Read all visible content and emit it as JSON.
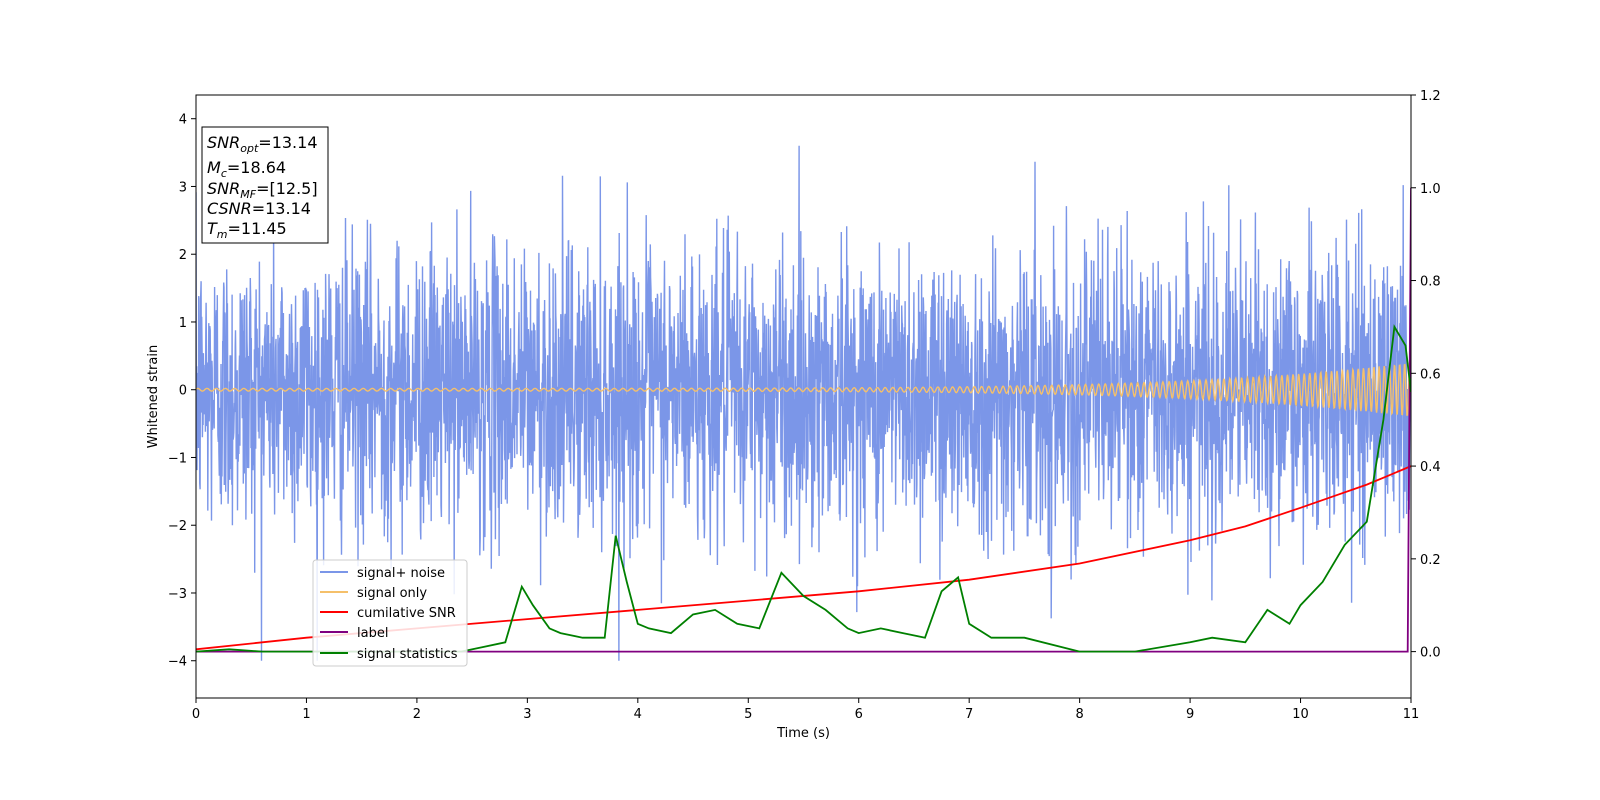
{
  "chart_data": {
    "type": "line",
    "xlabel": "Time (s)",
    "ylabel": "Whitened strain",
    "xlim": [
      0,
      11
    ],
    "ylim": [
      -4.55,
      4.35
    ],
    "y2lim": [
      -0.1,
      1.2
    ],
    "grid": false,
    "legend_placement": "lower-left",
    "x_ticks": [
      "0",
      "1",
      "2",
      "3",
      "4",
      "5",
      "6",
      "7",
      "8",
      "9",
      "10",
      "11"
    ],
    "y_ticks": [
      "−4",
      "−3",
      "−2",
      "−1",
      "0",
      "1",
      "2",
      "3",
      "4"
    ],
    "y2_ticks": [
      "0.0",
      "0.2",
      "0.4",
      "0.6",
      "0.8",
      "1.0",
      "1.2"
    ],
    "annotation": {
      "lines": [
        {
          "main": "SNR",
          "sub": "opt",
          "rest": "=13.14"
        },
        {
          "main": "M",
          "sub": "c",
          "rest": "=18.64"
        },
        {
          "main": "SNR",
          "sub": "MF",
          "rest": "=[12.5]"
        },
        {
          "main": "CSNR",
          "sub": "",
          "rest": "=13.14"
        },
        {
          "main": "T",
          "sub": "m",
          "rest": "=11.45"
        }
      ]
    },
    "series": [
      {
        "name": "signal+ noise",
        "color": "#7b96e8",
        "axis": "left",
        "noise_sigma": 1.0,
        "noise_peak": 4.0
      },
      {
        "name": "signal only",
        "color": "#f5c06a",
        "axis": "left",
        "amplitude_start": 0.02,
        "amplitude_end": 0.4
      },
      {
        "name": "cumilative SNR",
        "color": "#ff0000",
        "axis": "right",
        "x": [
          0,
          1,
          2,
          3,
          4,
          5,
          6,
          7,
          8,
          9,
          9.5,
          10,
          10.3,
          10.6,
          10.8,
          11
        ],
        "values": [
          0.005,
          0.03,
          0.05,
          0.07,
          0.09,
          0.11,
          0.13,
          0.155,
          0.19,
          0.24,
          0.27,
          0.31,
          0.335,
          0.36,
          0.38,
          0.4
        ]
      },
      {
        "name": "label",
        "color": "#800080",
        "axis": "right",
        "x": [
          0,
          10.97,
          11
        ],
        "values": [
          0.0,
          0.0,
          1.0
        ]
      },
      {
        "name": "signal statistics",
        "color": "#008000",
        "axis": "right",
        "x": [
          0,
          0.3,
          0.6,
          1,
          1.5,
          2,
          2.4,
          2.6,
          2.8,
          2.95,
          3.05,
          3.2,
          3.3,
          3.5,
          3.7,
          3.8,
          3.9,
          4.0,
          4.1,
          4.3,
          4.5,
          4.7,
          4.9,
          5.1,
          5.3,
          5.5,
          5.7,
          5.9,
          6.0,
          6.2,
          6.4,
          6.6,
          6.75,
          6.9,
          7.0,
          7.2,
          7.5,
          8.0,
          8.5,
          9.0,
          9.2,
          9.5,
          9.7,
          9.9,
          10.0,
          10.2,
          10.4,
          10.6,
          10.75,
          10.85,
          10.95,
          11.0
        ],
        "values": [
          0.0,
          0.005,
          0.0,
          0.0,
          0.0,
          0.0,
          0.0,
          0.01,
          0.02,
          0.14,
          0.1,
          0.05,
          0.04,
          0.03,
          0.03,
          0.25,
          0.15,
          0.06,
          0.05,
          0.04,
          0.08,
          0.09,
          0.06,
          0.05,
          0.17,
          0.12,
          0.09,
          0.05,
          0.04,
          0.05,
          0.04,
          0.03,
          0.13,
          0.16,
          0.06,
          0.03,
          0.03,
          0.0,
          0.0,
          0.02,
          0.03,
          0.02,
          0.09,
          0.06,
          0.1,
          0.15,
          0.23,
          0.28,
          0.5,
          0.7,
          0.66,
          0.56
        ]
      }
    ]
  }
}
